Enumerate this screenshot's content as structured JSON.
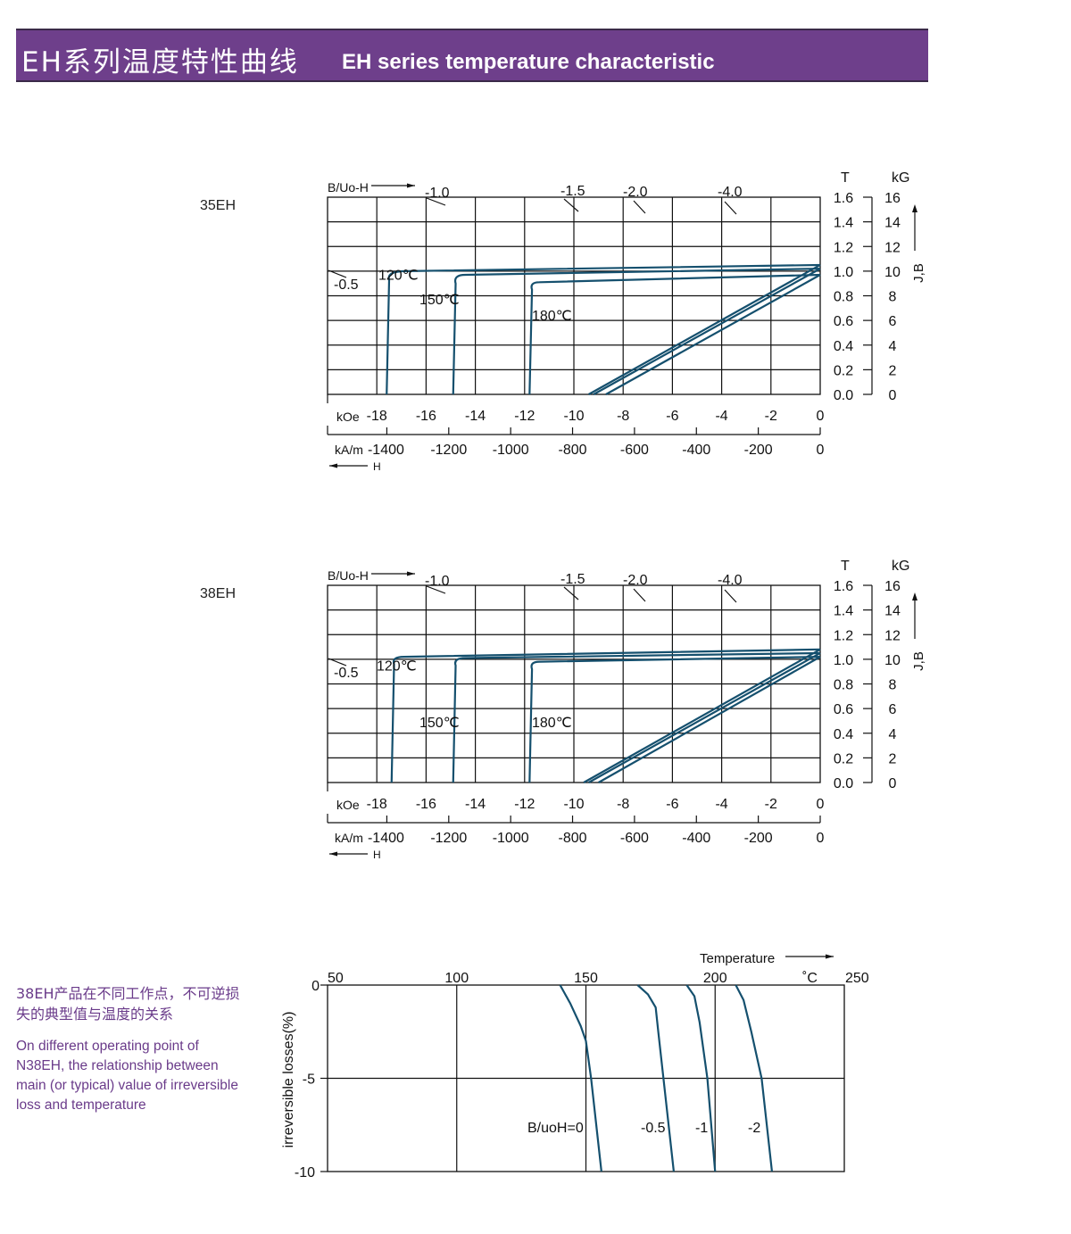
{
  "header": {
    "title_cn": "EH系列温度特性曲线",
    "title_en": "EH  series temperature characteristic",
    "bg_color": "#6e3f8b"
  },
  "curve_color": "#15506e",
  "side_note": {
    "cn": "38EH产品在不同工作点，不可逆损失的典型值与温度的关系",
    "en": "On different operating point of N38EH,  the relationship between main (or typical) value of irreversible loss and temperature"
  },
  "chart_data": [
    {
      "type": "line",
      "label": "35EH",
      "grade": "35EH",
      "load_line_label": "B/Uo-H",
      "load_lines": [
        "-0.5",
        "-1.0",
        "-1.5",
        "-2.0",
        "-4.0"
      ],
      "x_kOe": {
        "unit": "kOe",
        "ticks": [
          -18,
          -16,
          -14,
          -12,
          -10,
          -8,
          -6,
          -4,
          -2,
          0
        ],
        "range": [
          -20,
          0
        ]
      },
      "x_kAm": {
        "unit": "kA/m",
        "ticks": [
          -1400,
          -1200,
          -1000,
          -800,
          -600,
          -400,
          -200,
          0
        ]
      },
      "h_label": "H",
      "y_T": {
        "unit": "T",
        "ticks": [
          "0.0",
          "0.2",
          "0.4",
          "0.6",
          "0.8",
          "1.0",
          "1.2",
          "1.4",
          "1.6"
        ],
        "range": [
          0,
          1.6
        ]
      },
      "y_kG": {
        "unit": "kG",
        "ticks": [
          "0",
          "2",
          "4",
          "6",
          "8",
          "10",
          "12",
          "14",
          "16"
        ]
      },
      "y_label": "J,B",
      "grid": true,
      "series": [
        {
          "name": "120℃",
          "J": [
            [
              0,
              1.05
            ],
            [
              -16.8,
              1.0
            ],
            [
              -17.5,
              0.93
            ],
            [
              -17.6,
              0
            ]
          ],
          "B": [
            [
              0,
              1.05
            ],
            [
              -9.4,
              0
            ]
          ]
        },
        {
          "name": "150℃",
          "J": [
            [
              0,
              1.02
            ],
            [
              -14.4,
              0.97
            ],
            [
              -14.8,
              0.9
            ],
            [
              -14.9,
              0
            ]
          ],
          "B": [
            [
              0,
              1.02
            ],
            [
              -9.2,
              0
            ]
          ]
        },
        {
          "name": "180℃",
          "J": [
            [
              0,
              0.97
            ],
            [
              -11.4,
              0.91
            ],
            [
              -11.7,
              0.85
            ],
            [
              -11.8,
              0
            ]
          ],
          "B": [
            [
              0,
              0.97
            ],
            [
              -8.7,
              0
            ]
          ]
        }
      ]
    },
    {
      "type": "line",
      "label": "38EH",
      "grade": "38EH",
      "load_line_label": "B/Uo-H",
      "load_lines": [
        "-0.5",
        "-1.0",
        "-1.5",
        "-2.0",
        "-4.0"
      ],
      "x_kOe": {
        "unit": "kOe",
        "ticks": [
          -18,
          -16,
          -14,
          -12,
          -10,
          -8,
          -6,
          -4,
          -2,
          0
        ],
        "range": [
          -20,
          0
        ]
      },
      "x_kAm": {
        "unit": "kA/m",
        "ticks": [
          -1400,
          -1200,
          -1000,
          -800,
          -600,
          -400,
          -200,
          0
        ]
      },
      "h_label": "H",
      "y_T": {
        "unit": "T",
        "ticks": [
          "0.0",
          "0.2",
          "0.4",
          "0.6",
          "0.8",
          "1.0",
          "1.2",
          "1.4",
          "1.6"
        ],
        "range": [
          0,
          1.6
        ]
      },
      "y_kG": {
        "unit": "kG",
        "ticks": [
          "0",
          "2",
          "4",
          "6",
          "8",
          "10",
          "12",
          "14",
          "16"
        ]
      },
      "y_label": "J,B",
      "grid": true,
      "series": [
        {
          "name": "120℃",
          "J": [
            [
              0,
              1.08
            ],
            [
              -16.9,
              1.02
            ],
            [
              -17.3,
              0.96
            ],
            [
              -17.4,
              0
            ]
          ],
          "B": [
            [
              0,
              1.08
            ],
            [
              -9.6,
              0
            ]
          ]
        },
        {
          "name": "150℃",
          "J": [
            [
              0,
              1.05
            ],
            [
              -14.4,
              1.01
            ],
            [
              -14.8,
              0.95
            ],
            [
              -14.9,
              0
            ]
          ],
          "B": [
            [
              0,
              1.05
            ],
            [
              -9.4,
              0
            ]
          ]
        },
        {
          "name": "180℃",
          "J": [
            [
              0,
              1.02
            ],
            [
              -11.4,
              0.98
            ],
            [
              -11.7,
              0.92
            ],
            [
              -11.8,
              0
            ]
          ],
          "B": [
            [
              0,
              1.02
            ],
            [
              -9.0,
              0
            ]
          ]
        }
      ]
    },
    {
      "type": "line",
      "xlabel": "Temperature",
      "x_unit": "˚C",
      "ylabel": "irreversible  losses(%)",
      "xlim": [
        50,
        250
      ],
      "ylim": [
        -10,
        0
      ],
      "x_ticks": [
        50,
        100,
        150,
        200,
        250
      ],
      "y_ticks": [
        0,
        -5,
        -10
      ],
      "grid": true,
      "series": [
        {
          "name": "B/uoH=0",
          "points": [
            [
              140,
              0
            ],
            [
              144,
              -1
            ],
            [
              148,
              -2.2
            ],
            [
              150,
              -3
            ],
            [
              152,
              -5
            ],
            [
              156,
              -10
            ]
          ]
        },
        {
          "name": "-0.5",
          "points": [
            [
              170,
              0
            ],
            [
              174,
              -0.5
            ],
            [
              177,
              -1.2
            ],
            [
              178,
              -2.5
            ],
            [
              180,
              -5
            ],
            [
              184,
              -10
            ]
          ]
        },
        {
          "name": "-1",
          "points": [
            [
              189,
              0
            ],
            [
              192,
              -0.6
            ],
            [
              194,
              -2
            ],
            [
              197,
              -5
            ],
            [
              200,
              -10
            ]
          ]
        },
        {
          "name": "-2",
          "points": [
            [
              208,
              0
            ],
            [
              211,
              -0.8
            ],
            [
              214,
              -2.5
            ],
            [
              218,
              -5
            ],
            [
              222,
              -10
            ]
          ]
        }
      ]
    }
  ]
}
